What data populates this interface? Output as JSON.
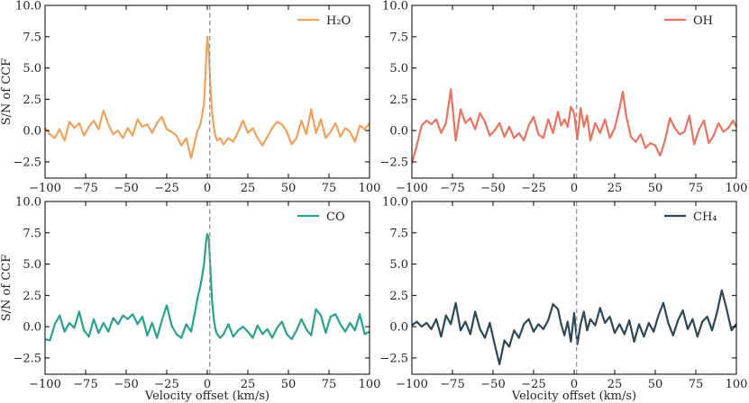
{
  "chart_data": [
    {
      "type": "line",
      "panel": "top-left",
      "legend": "H₂O",
      "color": "#f0a25c",
      "ylabel": "S/N of CCF",
      "xlabel": "",
      "xlim": [
        -100,
        100
      ],
      "ylim": [
        -3.8,
        10
      ],
      "xticks": [
        -100,
        -75,
        -50,
        -25,
        0,
        25,
        50,
        75,
        100
      ],
      "yticks": [
        -2.5,
        0.0,
        2.5,
        5.0,
        7.5,
        10.0
      ],
      "xtick_labels": [
        "−100",
        "−75",
        "−50",
        "−25",
        "0",
        "25",
        "50",
        "75",
        "100"
      ],
      "ytick_labels": [
        "−2.5",
        "0.0",
        "2.5",
        "5.0",
        "7.5",
        "10.0"
      ],
      "show_xtick_labels": true,
      "show_ylabel": true,
      "legend_position": "top-right",
      "vline_x": 1.5,
      "x": [
        -100,
        -97,
        -94,
        -91,
        -88,
        -85,
        -82,
        -79,
        -76,
        -73,
        -70,
        -67,
        -64,
        -61,
        -58,
        -55,
        -52,
        -49,
        -46,
        -43,
        -40,
        -37,
        -34,
        -31,
        -28,
        -25,
        -22,
        -19,
        -16,
        -13,
        -10,
        -8,
        -6,
        -4,
        -2,
        -1,
        0,
        1,
        2,
        3,
        4,
        5,
        6,
        8,
        10,
        13,
        16,
        19,
        22,
        25,
        28,
        31,
        34,
        37,
        40,
        43,
        46,
        49,
        52,
        55,
        58,
        61,
        64,
        67,
        70,
        73,
        76,
        79,
        82,
        85,
        88,
        91,
        94,
        97,
        100
      ],
      "y": [
        0.2,
        -0.3,
        -0.6,
        0.1,
        -0.8,
        0.7,
        0.2,
        0.6,
        -0.4,
        0.3,
        0.8,
        0.1,
        1.6,
        0.5,
        -0.3,
        0.0,
        -0.6,
        0.2,
        -0.4,
        0.9,
        0.3,
        0.5,
        -0.2,
        0.6,
        1.1,
        0.1,
        -0.1,
        -0.4,
        -1.2,
        -0.6,
        -2.2,
        -1.1,
        0.0,
        0.6,
        2.2,
        4.8,
        7.5,
        6.2,
        3.3,
        1.4,
        0.3,
        -0.4,
        -0.8,
        -0.6,
        -1.1,
        -0.6,
        -0.9,
        -0.1,
        0.8,
        -0.2,
        0.2,
        -0.6,
        -1.2,
        -0.5,
        0.2,
        0.7,
        0.5,
        -0.1,
        -1.1,
        -0.6,
        0.8,
        -0.3,
        1.7,
        -0.2,
        0.9,
        -0.6,
        -0.1,
        0.6,
        -0.5,
        0.2,
        -0.1,
        -0.9,
        0.4,
        0.1,
        0.6
      ]
    },
    {
      "type": "line",
      "panel": "top-right",
      "legend": "OH",
      "color": "#e8735f",
      "ylabel": "",
      "xlabel": "",
      "xlim": [
        -100,
        100
      ],
      "ylim": [
        -3.8,
        10
      ],
      "xticks": [
        -100,
        -75,
        -50,
        -25,
        0,
        25,
        50,
        75,
        100
      ],
      "yticks": [
        -2.5,
        0.0,
        2.5,
        5.0,
        7.5,
        10.0
      ],
      "xtick_labels": [
        "−100",
        "−75",
        "−50",
        "−25",
        "0",
        "25",
        "50",
        "75",
        "100"
      ],
      "ytick_labels": [
        "−2.5",
        "0.0",
        "2.5",
        "5.0",
        "7.5",
        "10.0"
      ],
      "show_xtick_labels": true,
      "show_ylabel": false,
      "legend_position": "top-right",
      "vline_x": 1.5,
      "x": [
        -100,
        -97,
        -94,
        -91,
        -88,
        -85,
        -82,
        -79,
        -76,
        -73,
        -70,
        -67,
        -64,
        -61,
        -58,
        -55,
        -52,
        -49,
        -46,
        -43,
        -40,
        -37,
        -34,
        -31,
        -28,
        -25,
        -22,
        -19,
        -16,
        -13,
        -10,
        -8,
        -6,
        -4,
        -2,
        0,
        2,
        4,
        6,
        8,
        10,
        13,
        16,
        19,
        22,
        25,
        28,
        30,
        32,
        35,
        38,
        41,
        44,
        47,
        50,
        53,
        56,
        59,
        62,
        65,
        68,
        71,
        74,
        77,
        80,
        83,
        86,
        89,
        92,
        95,
        98,
        100
      ],
      "y": [
        -2.6,
        -1.2,
        0.4,
        0.8,
        0.5,
        0.9,
        -0.2,
        0.6,
        3.3,
        -0.8,
        1.7,
        0.6,
        1.0,
        0.1,
        1.4,
        0.7,
        -0.4,
        0.0,
        0.6,
        -0.5,
        0.3,
        -0.6,
        -0.2,
        -0.8,
        0.4,
        1.1,
        -0.3,
        -0.6,
        0.9,
        -0.2,
        1.5,
        0.4,
        0.9,
        0.3,
        1.9,
        1.4,
        -0.7,
        1.8,
        0.3,
        1.2,
        -0.8,
        0.6,
        -0.2,
        0.9,
        -0.6,
        0.2,
        1.8,
        3.1,
        1.2,
        -0.5,
        -0.9,
        -0.3,
        -1.4,
        -1.0,
        -1.2,
        -2.0,
        -0.8,
        1.0,
        0.2,
        -0.3,
        -0.1,
        1.2,
        -1.1,
        0.1,
        0.8,
        -1.0,
        -0.4,
        0.6,
        -0.1,
        0.2,
        0.8,
        0.3
      ]
    },
    {
      "type": "line",
      "panel": "bottom-left",
      "legend": "CO",
      "color": "#2aa18e",
      "ylabel": "S/N of CCF",
      "xlabel": "Velocity offset (km/s)",
      "xlim": [
        -100,
        100
      ],
      "ylim": [
        -3.8,
        10
      ],
      "xticks": [
        -100,
        -75,
        -50,
        -25,
        0,
        25,
        50,
        75,
        100
      ],
      "yticks": [
        -2.5,
        0.0,
        2.5,
        5.0,
        7.5,
        10.0
      ],
      "xtick_labels": [
        "−100",
        "−75",
        "−50",
        "−25",
        "0",
        "25",
        "50",
        "75",
        "100"
      ],
      "ytick_labels": [
        "−2.5",
        "0.0",
        "2.5",
        "5.0",
        "7.5",
        "10.0"
      ],
      "show_xtick_labels": true,
      "show_ylabel": true,
      "legend_position": "top-right",
      "vline_x": 1.5,
      "x": [
        -100,
        -97,
        -94,
        -91,
        -88,
        -85,
        -82,
        -79,
        -76,
        -73,
        -70,
        -67,
        -64,
        -61,
        -58,
        -55,
        -52,
        -49,
        -46,
        -43,
        -40,
        -37,
        -34,
        -31,
        -28,
        -25,
        -22,
        -19,
        -16,
        -13,
        -10,
        -8,
        -6,
        -4,
        -2,
        -1,
        0,
        1,
        2,
        3,
        4,
        5,
        6,
        8,
        10,
        13,
        16,
        19,
        22,
        25,
        28,
        31,
        34,
        37,
        40,
        43,
        46,
        49,
        52,
        55,
        58,
        61,
        64,
        67,
        70,
        73,
        76,
        79,
        82,
        85,
        88,
        91,
        94,
        97,
        100
      ],
      "y": [
        -1.0,
        -1.1,
        0.2,
        0.9,
        -0.4,
        0.3,
        -0.1,
        1.2,
        -0.3,
        -0.8,
        0.6,
        -0.5,
        0.3,
        -0.4,
        0.7,
        0.2,
        0.9,
        0.6,
        1.0,
        0.2,
        0.8,
        -0.7,
        0.3,
        -0.9,
        0.5,
        1.7,
        0.1,
        -0.6,
        -0.9,
        0.2,
        -0.4,
        0.9,
        2.3,
        3.4,
        5.0,
        6.5,
        7.4,
        7.0,
        4.3,
        2.0,
        0.6,
        -0.2,
        -0.6,
        -0.9,
        -0.6,
        0.2,
        -0.8,
        -0.3,
        0.0,
        -0.4,
        -0.9,
        0.1,
        -0.6,
        -0.2,
        -0.9,
        -0.1,
        0.4,
        -0.6,
        -1.0,
        -0.3,
        0.6,
        -0.2,
        -0.7,
        1.4,
        0.9,
        -0.5,
        0.8,
        1.0,
        0.2,
        -0.4,
        0.3,
        -0.3,
        1.0,
        -0.6,
        -0.4
      ]
    },
    {
      "type": "line",
      "panel": "bottom-right",
      "legend": "CH₄",
      "color": "#2d4756",
      "ylabel": "",
      "xlabel": "Velocity offset (km/s)",
      "xlim": [
        -100,
        100
      ],
      "ylim": [
        -3.8,
        10
      ],
      "xticks": [
        -100,
        -75,
        -50,
        -25,
        0,
        25,
        50,
        75,
        100
      ],
      "yticks": [
        -2.5,
        0.0,
        2.5,
        5.0,
        7.5,
        10.0
      ],
      "xtick_labels": [
        "−100",
        "−75",
        "−50",
        "−25",
        "0",
        "25",
        "50",
        "75",
        "100"
      ],
      "ytick_labels": [
        "−2.5",
        "0.0",
        "2.5",
        "5.0",
        "7.5",
        "10.0"
      ],
      "show_xtick_labels": true,
      "show_ylabel": false,
      "legend_position": "top-right",
      "vline_x": 1.5,
      "x": [
        -100,
        -97,
        -94,
        -91,
        -88,
        -85,
        -82,
        -79,
        -76,
        -73,
        -70,
        -67,
        -64,
        -61,
        -58,
        -55,
        -52,
        -49,
        -46,
        -43,
        -40,
        -37,
        -34,
        -31,
        -28,
        -25,
        -22,
        -19,
        -16,
        -13,
        -10,
        -8,
        -6,
        -4,
        -2,
        0,
        2,
        4,
        6,
        8,
        10,
        13,
        16,
        19,
        22,
        25,
        28,
        31,
        34,
        37,
        40,
        43,
        46,
        49,
        52,
        55,
        58,
        61,
        64,
        67,
        70,
        73,
        76,
        79,
        82,
        85,
        88,
        91,
        94,
        97,
        100
      ],
      "y": [
        0.1,
        0.4,
        0.0,
        0.3,
        -0.2,
        0.6,
        -0.8,
        0.9,
        0.2,
        1.9,
        -0.3,
        0.4,
        -0.6,
        1.2,
        -0.2,
        -0.9,
        0.3,
        -1.4,
        -3.0,
        -1.1,
        -1.6,
        -0.3,
        -0.9,
        0.2,
        0.6,
        -0.4,
        0.2,
        -0.2,
        0.5,
        1.8,
        1.4,
        0.2,
        -0.7,
        0.4,
        -1.2,
        1.1,
        -1.4,
        0.2,
        1.2,
        -0.3,
        0.6,
        0.1,
        1.5,
        0.3,
        0.8,
        -0.5,
        0.2,
        -0.6,
        0.5,
        -1.2,
        0.2,
        -0.8,
        0.3,
        -0.4,
        0.9,
        1.9,
        0.3,
        -0.7,
        0.5,
        1.3,
        -0.2,
        0.6,
        -0.8,
        0.4,
        0.8,
        -0.3,
        1.1,
        2.9,
        1.4,
        -0.3,
        0.2
      ]
    }
  ]
}
